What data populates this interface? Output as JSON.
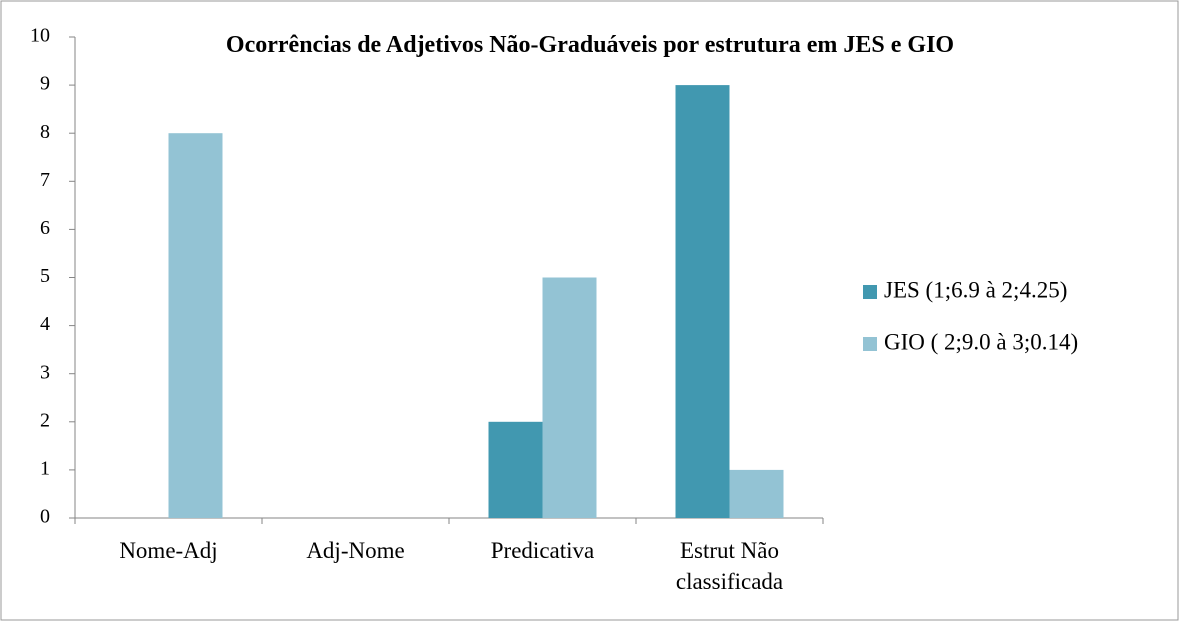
{
  "chart_data": {
    "type": "bar",
    "title": "Ocorrências de Adjetivos Não-Graduáveis por estrutura em JES e GIO",
    "categories": [
      "Nome-Adj",
      "Adj-Nome",
      "Predicativa",
      "Estrut Não classificada"
    ],
    "series": [
      {
        "name": "JES (1;6.9 à 2;4.25)",
        "color": "#4198b0",
        "values": [
          0,
          0,
          2,
          9
        ]
      },
      {
        "name": "GIO ( 2;9.0 à 3;0.14)",
        "color": "#93c3d4",
        "values": [
          8,
          0,
          5,
          1
        ]
      }
    ],
    "ylim": [
      0,
      10
    ],
    "yticks": [
      0,
      1,
      2,
      3,
      4,
      5,
      6,
      7,
      8,
      9,
      10
    ],
    "grid": false,
    "legend": "right"
  }
}
